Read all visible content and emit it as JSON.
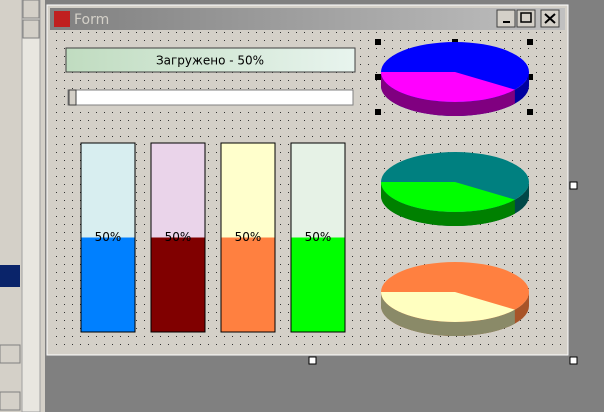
{
  "window": {
    "title": "Form"
  },
  "progress": {
    "label": "Загружено - 50%"
  },
  "gauges": [
    {
      "value": 50,
      "label": "50%",
      "color": "#0080ff",
      "empty": "#d8eef0"
    },
    {
      "value": 50,
      "label": "50%",
      "color": "#800000",
      "empty": "#ead4ea"
    },
    {
      "value": 50,
      "label": "50%",
      "color": "#ff8040",
      "empty": "#ffffcc"
    },
    {
      "value": 50,
      "label": "50%",
      "color": "#00ff00",
      "empty": "#e6f2e6"
    }
  ],
  "pies": [
    {
      "value": 40,
      "color": "#0000ff",
      "side": "#0000a0",
      "part_color": "#ff00ff",
      "part_side": "#800080"
    },
    {
      "value": 40,
      "color": "#008080",
      "side": "#004848",
      "part_color": "#00ff00",
      "part_side": "#008000"
    },
    {
      "value": 40,
      "color": "#ff8040",
      "side": "#a85428",
      "part_color": "#ffffc0",
      "part_side": "#8a8a68"
    }
  ]
}
